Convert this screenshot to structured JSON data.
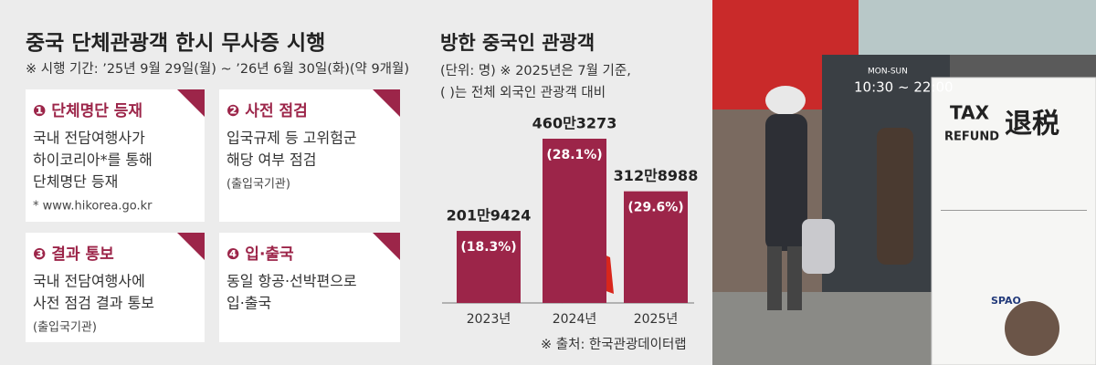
{
  "header": {
    "title": "중국 단체관광객 한시 무사증 시행",
    "period": "※ 시행 기간: ’25년 9월 29일(월) ~ ’26년 6월 30일(화)(약 9개월)"
  },
  "steps": [
    {
      "label": "❶ 단체명단 등재",
      "lines": [
        "국내 전담여행사가",
        "하이코리아*를 통해",
        "단체명단 등재"
      ],
      "note": "* www.hikorea.go.kr"
    },
    {
      "label": "❷ 사전 점검",
      "lines": [
        "입국규제 등 고위험군",
        "해당 여부 점검"
      ],
      "note": "(출입국기관)"
    },
    {
      "label": "❸ 결과 통보",
      "lines": [
        "국내 전담여행사에",
        "사전 점검 결과 통보"
      ],
      "note": "(출입국기관)"
    },
    {
      "label": "❹ 입·출국",
      "lines": [
        "동일 항공·선박편으로",
        "입·출국"
      ]
    }
  ],
  "chart_data": {
    "type": "bar",
    "title": "방한 중국인 관광객",
    "subtitle": [
      "(단위: 명) ※ 2025년은 7월 기준,",
      "( )는 전체 외국인 관광객 대비"
    ],
    "categories": [
      "2023년",
      "2024년",
      "2025년"
    ],
    "values": [
      2019424,
      4603273,
      3128988
    ],
    "value_labels": [
      "201만9424",
      "460만3273",
      "312만8988"
    ],
    "share_labels": [
      "(18.3%)",
      "(28.1%)",
      "(29.6%)"
    ],
    "color": "#9c2549",
    "source": "※ 출처: 한국관광데이터랩"
  },
  "photo": {
    "hours_days": "MON-SUN",
    "hours": "10:30 ~ 22:00",
    "sign": [
      "TAX",
      "REFUND",
      "退税"
    ],
    "brand": "SPAO"
  }
}
